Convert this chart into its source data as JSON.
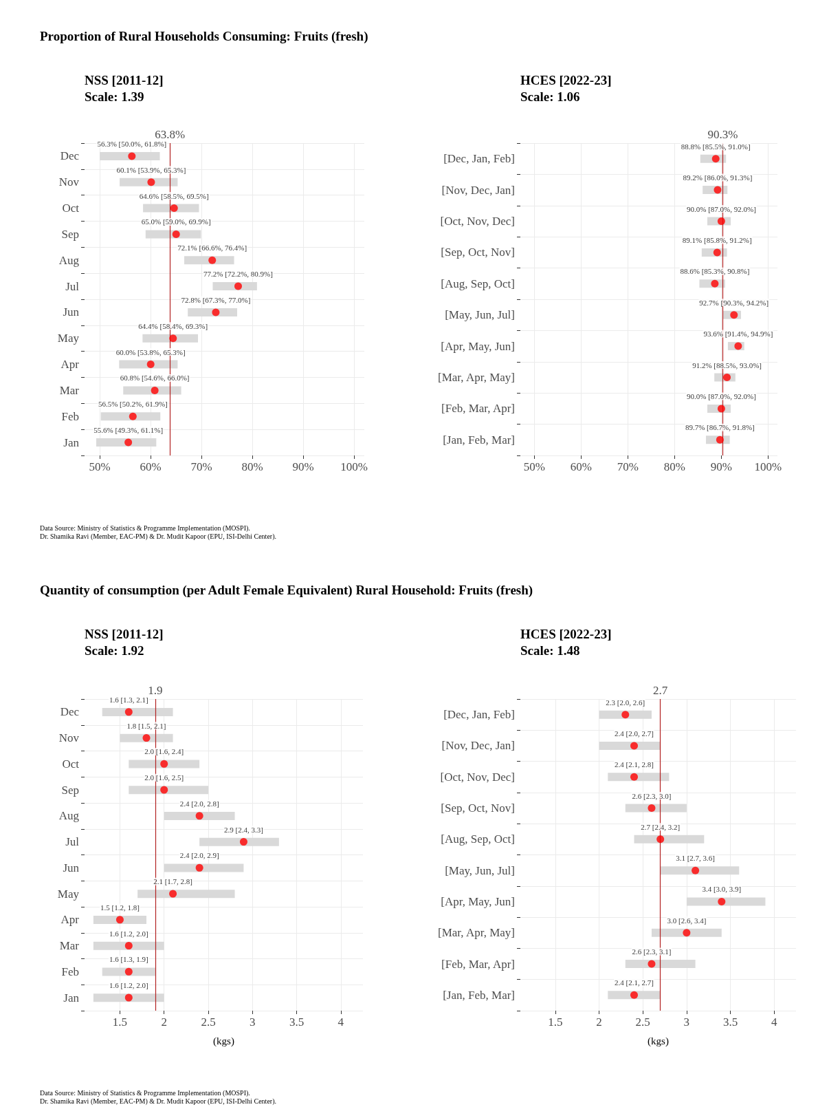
{
  "chart_data": [
    {
      "type": "scatter",
      "orientation": "horizontal",
      "title": "NSS [2011-12]",
      "subtitle": "Scale: 1.39",
      "annotations": [
        "Proportion of Rural Households Consuming: Fruits (fresh)",
        "Data Source: Ministry of Statistics & Programme Implementation (MOSPI).",
        "Dr. Shamika Ravi (Member, EAC-PM) & Dr. Mudit Kapoor (EPU, ISI-Delhi Center)."
      ],
      "categories": [
        "Dec",
        "Nov",
        "Oct",
        "Sep",
        "Aug",
        "Jul",
        "Jun",
        "May",
        "Apr",
        "Mar",
        "Feb",
        "Jan"
      ],
      "series": [
        {
          "color": "#ff0000",
          "values": [
            56.3,
            60.1,
            64.6,
            65.0,
            72.1,
            77.2,
            72.8,
            64.4,
            60.0,
            60.8,
            56.5,
            55.6
          ],
          "errors": [
            [
              50.0,
              61.8
            ],
            [
              53.9,
              65.3
            ],
            [
              58.5,
              69.5
            ],
            [
              59.0,
              69.9
            ],
            [
              66.6,
              76.4
            ],
            [
              72.2,
              80.9
            ],
            [
              67.3,
              77.0
            ],
            [
              58.4,
              69.3
            ],
            [
              53.8,
              65.3
            ],
            [
              54.6,
              66.0
            ],
            [
              50.2,
              61.9
            ],
            [
              49.3,
              61.1
            ]
          ],
          "value_labels": [
            "56.3% [50.0%, 61.8%]",
            "60.1% [53.9%, 65.3%]",
            "64.6% [58.5%, 69.5%]",
            "65.0% [59.0%, 69.9%]",
            "72.1% [66.6%, 76.4%]",
            "77.2% [72.2%, 80.9%]",
            "72.8% [67.3%, 77.0%]",
            "64.4% [58.4%, 69.3%]",
            "60.0% [53.8%, 65.3%]",
            "60.8% [54.6%, 66.0%]",
            "56.5% [50.2%, 61.9%]",
            "55.6% [49.3%, 61.1%]"
          ]
        }
      ],
      "xlim": [
        47,
        102
      ],
      "xticks": [
        {
          "value": 50,
          "label": "50%"
        },
        {
          "value": 60,
          "label": "60%"
        },
        {
          "value": 70,
          "label": "70%"
        },
        {
          "value": 80,
          "label": "80%"
        },
        {
          "value": 90,
          "label": "90%"
        },
        {
          "value": 100,
          "label": "100%"
        }
      ],
      "ref_lines": [
        {
          "axis": "x",
          "value": 63.8,
          "label": "63.8%",
          "color": "#b22222"
        }
      ],
      "grid": true
    },
    {
      "type": "scatter",
      "orientation": "horizontal",
      "title": "HCES [2022-23]",
      "subtitle": "Scale: 1.06",
      "categories": [
        "[Dec, Jan, Feb]",
        "[Nov, Dec, Jan]",
        "[Oct, Nov, Dec]",
        "[Sep, Oct, Nov]",
        "[Aug, Sep, Oct]",
        "[May, Jun, Jul]",
        "[Apr, May, Jun]",
        "[Mar, Apr, May]",
        "[Feb, Mar, Apr]",
        "[Jan, Feb, Mar]"
      ],
      "series": [
        {
          "color": "#ff0000",
          "values": [
            88.8,
            89.2,
            90.0,
            89.1,
            88.6,
            92.7,
            93.6,
            91.2,
            90.0,
            89.7
          ],
          "errors": [
            [
              85.5,
              91.0
            ],
            [
              86.0,
              91.3
            ],
            [
              87.0,
              92.0
            ],
            [
              85.8,
              91.2
            ],
            [
              85.3,
              90.8
            ],
            [
              90.3,
              94.2
            ],
            [
              91.4,
              94.9
            ],
            [
              88.5,
              93.0
            ],
            [
              87.0,
              92.0
            ],
            [
              86.7,
              91.8
            ]
          ],
          "value_labels": [
            "88.8% [85.5%, 91.0%]",
            "89.2% [86.0%, 91.3%]",
            "90.0% [87.0%, 92.0%]",
            "89.1% [85.8%, 91.2%]",
            "88.6% [85.3%, 90.8%]",
            "92.7% [90.3%, 94.2%]",
            "93.6% [91.4%, 94.9%]",
            "91.2% [88.5%, 93.0%]",
            "90.0% [87.0%, 92.0%]",
            "89.7% [86.7%, 91.8%]"
          ]
        }
      ],
      "xlim": [
        47,
        102
      ],
      "xticks": [
        {
          "value": 50,
          "label": "50%"
        },
        {
          "value": 60,
          "label": "60%"
        },
        {
          "value": 70,
          "label": "70%"
        },
        {
          "value": 80,
          "label": "80%"
        },
        {
          "value": 90,
          "label": "90%"
        },
        {
          "value": 100,
          "label": "100%"
        }
      ],
      "ref_lines": [
        {
          "axis": "x",
          "value": 90.3,
          "label": "90.3%",
          "color": "#b22222"
        }
      ],
      "grid": true
    },
    {
      "type": "scatter",
      "orientation": "horizontal",
      "title": "NSS [2011-12]",
      "subtitle": "Scale: 1.92",
      "xlabel": "(kgs)",
      "annotations": [
        "Quantity of consumption (per Adult Female Equivalent) Rural Household: Fruits (fresh)",
        "Data Source: Ministry of Statistics & Programme Implementation (MOSPI).",
        "Dr. Shamika Ravi (Member, EAC-PM) & Dr. Mudit Kapoor (EPU, ISI-Delhi Center)."
      ],
      "categories": [
        "Dec",
        "Nov",
        "Oct",
        "Sep",
        "Aug",
        "Jul",
        "Jun",
        "May",
        "Apr",
        "Mar",
        "Feb",
        "Jan"
      ],
      "series": [
        {
          "color": "#ff0000",
          "values": [
            1.6,
            1.8,
            2.0,
            2.0,
            2.4,
            2.9,
            2.4,
            2.1,
            1.5,
            1.6,
            1.6,
            1.6
          ],
          "errors": [
            [
              1.3,
              2.1
            ],
            [
              1.5,
              2.1
            ],
            [
              1.6,
              2.4
            ],
            [
              1.6,
              2.5
            ],
            [
              2.0,
              2.8
            ],
            [
              2.4,
              3.3
            ],
            [
              2.0,
              2.9
            ],
            [
              1.7,
              2.8
            ],
            [
              1.2,
              1.8
            ],
            [
              1.2,
              2.0
            ],
            [
              1.3,
              1.9
            ],
            [
              1.2,
              2.0
            ]
          ],
          "value_labels": [
            "1.6 [1.3, 2.1]",
            "1.8 [1.5, 2.1]",
            "2.0 [1.6, 2.4]",
            "2.0 [1.6, 2.5]",
            "2.4 [2.0, 2.8]",
            "2.9 [2.4, 3.3]",
            "2.4 [2.0, 2.9]",
            "2.1 [1.7, 2.8]",
            "1.5 [1.2, 1.8]",
            "1.6 [1.2, 2.0]",
            "1.6 [1.3, 1.9]",
            "1.6 [1.2, 2.0]"
          ]
        }
      ],
      "xlim": [
        1.1,
        4.25
      ],
      "xticks": [
        1.5,
        2,
        2.5,
        3,
        3.5,
        4
      ],
      "ref_lines": [
        {
          "axis": "x",
          "value": 1.9,
          "label": "1.9",
          "color": "#b22222"
        }
      ],
      "grid": true
    },
    {
      "type": "scatter",
      "orientation": "horizontal",
      "title": "HCES [2022-23]",
      "subtitle": "Scale: 1.48",
      "xlabel": "(kgs)",
      "categories": [
        "[Dec, Jan, Feb]",
        "[Nov, Dec, Jan]",
        "[Oct, Nov, Dec]",
        "[Sep, Oct, Nov]",
        "[Aug, Sep, Oct]",
        "[May, Jun, Jul]",
        "[Apr, May, Jun]",
        "[Mar, Apr, May]",
        "[Feb, Mar, Apr]",
        "[Jan, Feb, Mar]"
      ],
      "series": [
        {
          "color": "#ff0000",
          "values": [
            2.3,
            2.4,
            2.4,
            2.6,
            2.7,
            3.1,
            3.4,
            3.0,
            2.6,
            2.4
          ],
          "errors": [
            [
              2.0,
              2.6
            ],
            [
              2.0,
              2.7
            ],
            [
              2.1,
              2.8
            ],
            [
              2.3,
              3.0
            ],
            [
              2.4,
              3.2
            ],
            [
              2.7,
              3.6
            ],
            [
              3.0,
              3.9
            ],
            [
              2.6,
              3.4
            ],
            [
              2.3,
              3.1
            ],
            [
              2.1,
              2.7
            ]
          ],
          "value_labels": [
            "2.3 [2.0, 2.6]",
            "2.4 [2.0, 2.7]",
            "2.4 [2.1, 2.8]",
            "2.6 [2.3, 3.0]",
            "2.7 [2.4, 3.2]",
            "3.1 [2.7, 3.6]",
            "3.4 [3.0, 3.9]",
            "3.0 [2.6, 3.4]",
            "2.6 [2.3, 3.1]",
            "2.4 [2.1, 2.7]"
          ]
        }
      ],
      "xlim": [
        1.1,
        4.25
      ],
      "xticks": [
        1.5,
        2,
        2.5,
        3,
        3.5,
        4
      ],
      "ref_lines": [
        {
          "axis": "x",
          "value": 2.7,
          "label": "2.7",
          "color": "#b22222"
        }
      ],
      "grid": true
    }
  ]
}
